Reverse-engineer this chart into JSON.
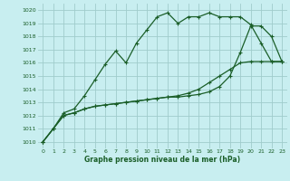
{
  "xlabel": "Graphe pression niveau de la mer (hPa)",
  "xlim": [
    -0.5,
    23.5
  ],
  "ylim": [
    1009.5,
    1020.5
  ],
  "yticks": [
    1010,
    1011,
    1012,
    1013,
    1014,
    1015,
    1016,
    1017,
    1018,
    1019,
    1020
  ],
  "xticks": [
    0,
    1,
    2,
    3,
    4,
    5,
    6,
    7,
    8,
    9,
    10,
    11,
    12,
    13,
    14,
    15,
    16,
    17,
    18,
    19,
    20,
    21,
    22,
    23
  ],
  "bg_color": "#c8eef0",
  "grid_color": "#a0cccc",
  "line_color": "#1a5e28",
  "line1_x": [
    0,
    1,
    2,
    3,
    4,
    5,
    6,
    7,
    8,
    9,
    10,
    11,
    12,
    13,
    14,
    15,
    16,
    17,
    18,
    19,
    20,
    21,
    22,
    23
  ],
  "line1_y": [
    1010.0,
    1011.0,
    1012.2,
    1012.5,
    1013.5,
    1014.7,
    1015.9,
    1016.9,
    1016.0,
    1017.5,
    1018.5,
    1019.5,
    1019.8,
    1019.0,
    1019.5,
    1019.5,
    1019.8,
    1019.5,
    1019.5,
    1019.5,
    1018.9,
    1017.5,
    1016.1,
    1016.1
  ],
  "line2_x": [
    0,
    1,
    2,
    3,
    4,
    5,
    6,
    7,
    8,
    9,
    10,
    11,
    12,
    13,
    14,
    15,
    16,
    17,
    18,
    19,
    20,
    21,
    22,
    23
  ],
  "line2_y": [
    1010.0,
    1011.0,
    1012.0,
    1012.2,
    1012.5,
    1012.7,
    1012.8,
    1012.9,
    1013.0,
    1013.1,
    1013.2,
    1013.3,
    1013.4,
    1013.5,
    1013.7,
    1014.0,
    1014.5,
    1015.0,
    1015.5,
    1016.0,
    1016.1,
    1016.1,
    1016.1,
    1016.1
  ],
  "line3_x": [
    0,
    1,
    2,
    3,
    4,
    5,
    6,
    7,
    8,
    9,
    10,
    11,
    12,
    13,
    14,
    15,
    16,
    17,
    18,
    19,
    20,
    21,
    22,
    23
  ],
  "line3_y": [
    1010.0,
    1011.0,
    1012.0,
    1012.2,
    1012.5,
    1012.7,
    1012.8,
    1012.9,
    1013.0,
    1013.1,
    1013.2,
    1013.3,
    1013.4,
    1013.4,
    1013.5,
    1013.6,
    1013.8,
    1014.2,
    1015.0,
    1016.8,
    1018.8,
    1018.8,
    1018.0,
    1016.1
  ]
}
